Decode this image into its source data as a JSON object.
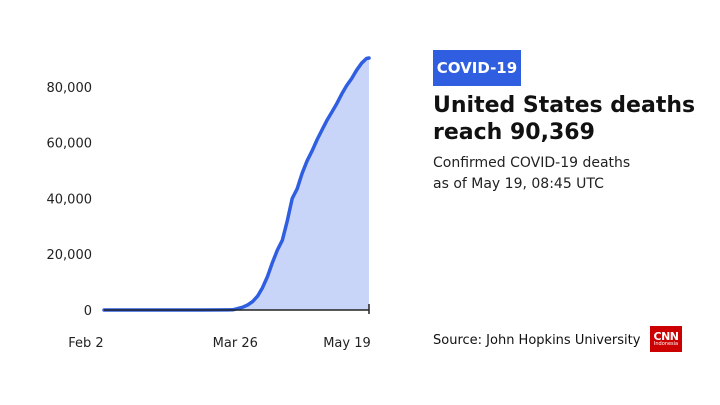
{
  "badge": {
    "label": "COVID-19",
    "color": "#2f5fe0"
  },
  "headline": {
    "line1": "United States deaths",
    "line2": "reach 90,369"
  },
  "subtitle": {
    "line1": "Confirmed COVID-19 deaths",
    "line2": "as of May 19, 08:45 UTC"
  },
  "source": "Source: John Hopkins University",
  "logo": {
    "line1": "CNN",
    "line2": "Indonesia",
    "color": "#cc0000"
  },
  "chart_data": {
    "type": "area",
    "title": "",
    "xlabel": "",
    "ylabel": "",
    "x_tick_labels": [
      "Feb 2",
      "Mar 26",
      "May 19"
    ],
    "y_ticks": [
      0,
      20000,
      40000,
      60000,
      80000
    ],
    "y_tick_labels": [
      "0",
      "20,000",
      "40,000",
      "60,000",
      "80,000"
    ],
    "ylim": [
      0,
      90369
    ],
    "x_range_days_from_feb2": [
      0,
      107
    ],
    "series": [
      {
        "name": "",
        "line_color": "#2f5fe0",
        "fill_color": "#c9d5f8",
        "points": [
          [
            0,
            0
          ],
          [
            20,
            0
          ],
          [
            40,
            0
          ],
          [
            50,
            20
          ],
          [
            52,
            80
          ],
          [
            54,
            500
          ],
          [
            56,
            1000
          ],
          [
            58,
            1800
          ],
          [
            60,
            3000
          ],
          [
            62,
            5000
          ],
          [
            64,
            8000
          ],
          [
            66,
            12000
          ],
          [
            68,
            17000
          ],
          [
            70,
            21500
          ],
          [
            72,
            25000
          ],
          [
            74,
            32000
          ],
          [
            76,
            40000
          ],
          [
            78,
            43500
          ],
          [
            80,
            49000
          ],
          [
            82,
            53500
          ],
          [
            84,
            57000
          ],
          [
            86,
            61000
          ],
          [
            88,
            64500
          ],
          [
            90,
            68000
          ],
          [
            92,
            71000
          ],
          [
            94,
            74000
          ],
          [
            96,
            77500
          ],
          [
            98,
            80500
          ],
          [
            100,
            83000
          ],
          [
            102,
            86000
          ],
          [
            104,
            88500
          ],
          [
            106,
            90200
          ],
          [
            107,
            90369
          ]
        ]
      }
    ]
  }
}
